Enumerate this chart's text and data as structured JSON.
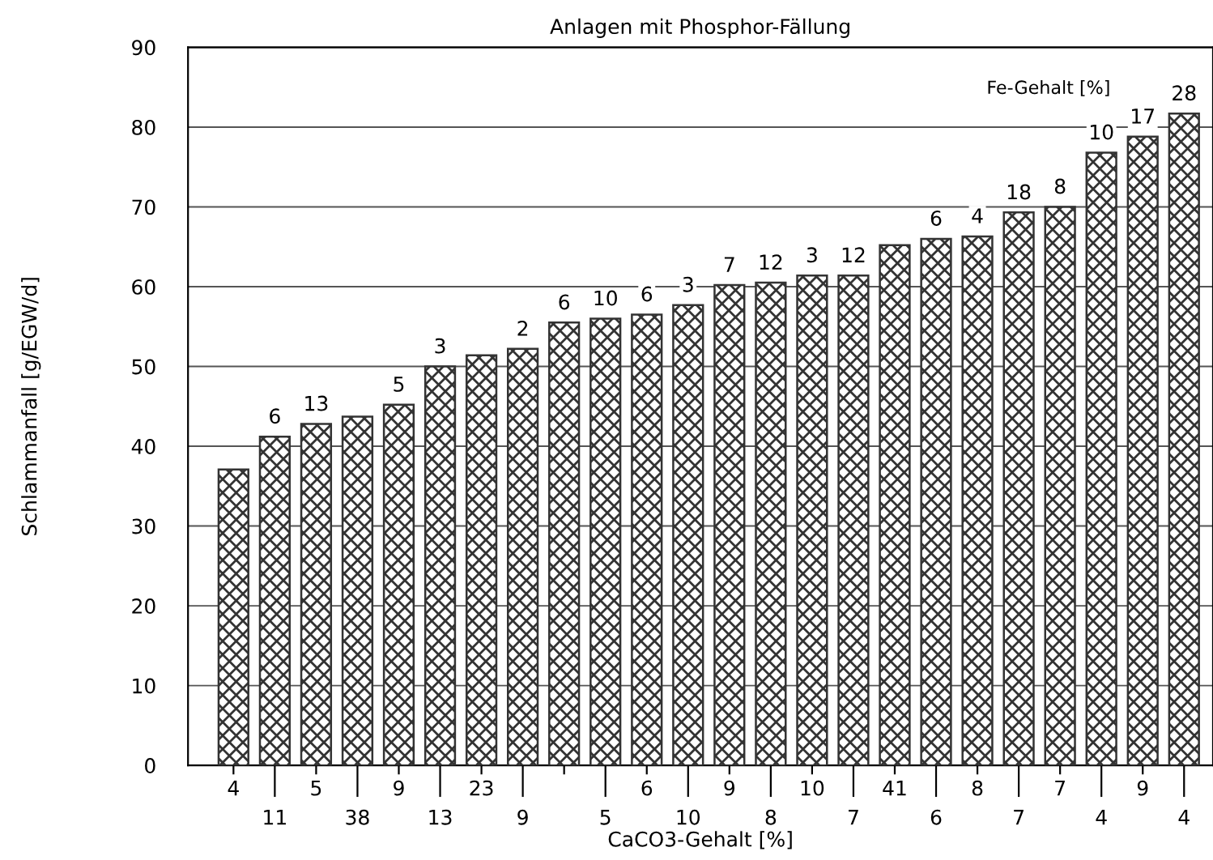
{
  "chart_data": {
    "type": "bar",
    "title": "Anlagen mit Phosphor-Fällung",
    "xlabel": "CaCO3-Gehalt [%]",
    "ylabel": "Schlammanfall [g/EGW/d]",
    "categories": [
      "4",
      "11",
      "5",
      "38",
      "9",
      "13",
      "23",
      "9",
      null,
      "5",
      "6",
      "10",
      "9",
      "8",
      "10",
      "7",
      "41",
      "6",
      "8",
      "7",
      "7",
      "4",
      "9",
      "4"
    ],
    "series": [
      {
        "color": "#333333",
        "values": [
          37.1,
          41.2,
          42.8,
          43.7,
          45.2,
          50.0,
          51.4,
          52.2,
          55.5,
          56.0,
          56.5,
          57.7,
          60.2,
          60.5,
          61.4,
          61.4,
          65.2,
          66.0,
          66.3,
          69.3,
          70.0,
          76.8,
          78.8,
          81.7
        ]
      }
    ],
    "annotations": [
      "Fe-Gehalt [%]",
      {
        "text": "6",
        "y": 41.2
      },
      {
        "text": "13",
        "y": 42.8
      },
      {
        "text": "5",
        "y": 45.2
      },
      {
        "text": "3",
        "y": 50.0
      },
      {
        "text": "2",
        "y": 52.2
      },
      {
        "text": "6",
        "y": 55.5
      },
      {
        "text": "10",
        "y": 56.0
      },
      {
        "text": "6",
        "y": 56.5
      },
      {
        "text": "3",
        "y": 57.7
      },
      {
        "text": "7",
        "y": 60.2
      },
      {
        "text": "12",
        "y": 60.5
      },
      {
        "text": "3",
        "y": 61.4
      },
      {
        "text": "12",
        "y": 61.4
      },
      {
        "text": "6",
        "y": 66.0
      },
      {
        "text": "4",
        "y": 66.3
      },
      {
        "text": "18",
        "y": 69.3
      },
      {
        "text": "8",
        "y": 70.0
      },
      {
        "text": "10",
        "y": 76.8
      },
      {
        "text": "17",
        "y": 78.8
      },
      {
        "text": "28",
        "y": 81.7
      }
    ],
    "ylim": [
      0,
      90
    ],
    "yticks": [
      0,
      10,
      20,
      30,
      40,
      50,
      60,
      70,
      80,
      90
    ],
    "grid": "y"
  }
}
